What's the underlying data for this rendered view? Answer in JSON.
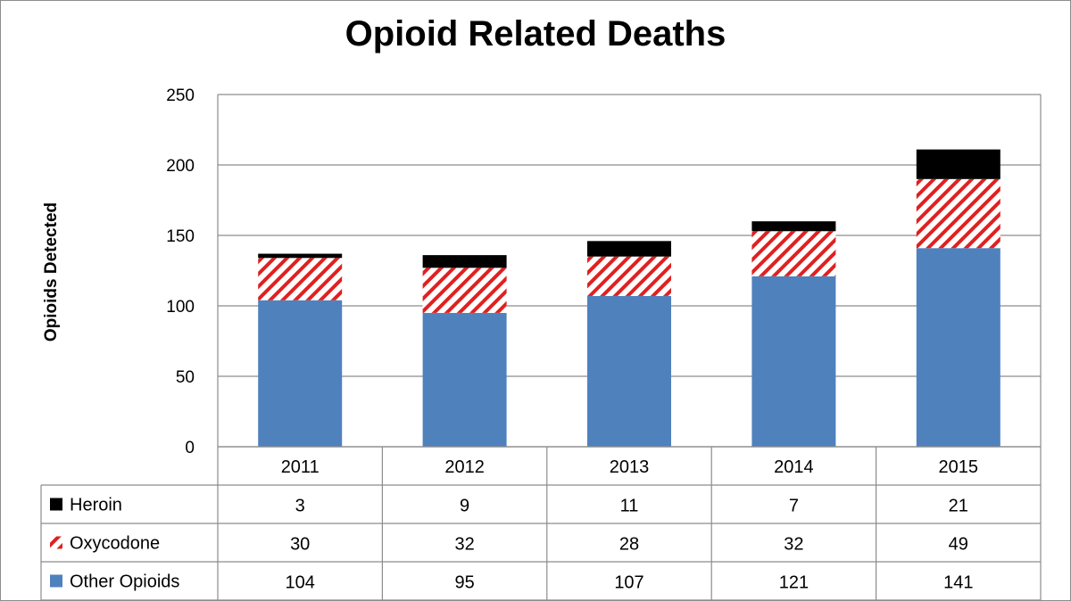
{
  "chart_data": {
    "type": "bar",
    "stacked": true,
    "title": "Opioid Related Deaths",
    "xlabel": "",
    "ylabel": "Opioids Detected",
    "ylim": [
      0,
      250
    ],
    "yticks": [
      "0",
      "50",
      "100",
      "150",
      "200",
      "250"
    ],
    "grid": true,
    "legend": "data-table",
    "categories": [
      "2011",
      "2012",
      "2013",
      "2014",
      "2015"
    ],
    "series": [
      {
        "name": "Other Opioids",
        "values": [
          104,
          95,
          107,
          121,
          141
        ],
        "color": "#4f81bd",
        "pattern": "solid"
      },
      {
        "name": "Oxycodone",
        "values": [
          30,
          32,
          28,
          32,
          49
        ],
        "color": "#e02020",
        "pattern": "diagonal-stripes"
      },
      {
        "name": "Heroin",
        "values": [
          3,
          9,
          11,
          7,
          21
        ],
        "color": "#000000",
        "pattern": "solid"
      }
    ],
    "table_rows": [
      {
        "name": "Heroin",
        "values": [
          "3",
          "9",
          "11",
          "7",
          "21"
        ]
      },
      {
        "name": "Oxycodone",
        "values": [
          "30",
          "32",
          "28",
          "32",
          "49"
        ]
      },
      {
        "name": "Other Opioids",
        "values": [
          "104",
          "95",
          "107",
          "121",
          "141"
        ]
      }
    ]
  }
}
